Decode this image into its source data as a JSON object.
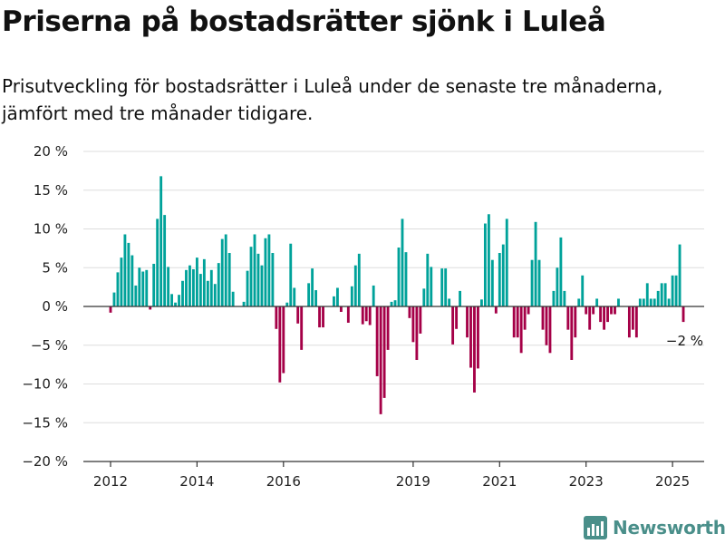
{
  "header": {
    "title": "Priserna på bostadsrätter sjönk i Luleå",
    "subtitle": "Prisutveckling för bostadsrätter i Luleå under de senaste tre månaderna, jämfört med tre månader tidigare."
  },
  "colors": {
    "positive": "#00a29a",
    "negative": "#a50047",
    "grid": "#dddddd",
    "axis": "#333333",
    "brand": "#4a8f8a"
  },
  "brand": {
    "name": "Newsworthy",
    "icon": "bar-chart-icon"
  },
  "chart_data": {
    "type": "bar",
    "title": "",
    "xlabel": "",
    "ylabel": "",
    "ylim": [
      -20,
      20
    ],
    "yticks": [
      20,
      15,
      10,
      5,
      0,
      -5,
      -10,
      -15,
      -20
    ],
    "ytick_labels": [
      "20 %",
      "15 %",
      "10 %",
      "5 %",
      "0 %",
      "−5 %",
      "−10 %",
      "−15 %",
      "−20 %"
    ],
    "xticks": [
      "2012",
      "2014",
      "2016",
      "2019",
      "2021",
      "2023",
      "2025"
    ],
    "x_start": "2012-01",
    "frequency": "monthly",
    "annotation": {
      "text": "−2 %",
      "value": -2,
      "at": "last"
    },
    "values": [
      -0.8,
      1.8,
      4.4,
      6.3,
      9.3,
      8.2,
      6.6,
      2.7,
      5.0,
      4.5,
      4.7,
      -0.4,
      5.5,
      11.3,
      16.8,
      11.8,
      5.1,
      1.6,
      0.5,
      1.5,
      3.3,
      4.7,
      5.3,
      4.8,
      6.3,
      4.2,
      6.1,
      3.3,
      4.7,
      2.9,
      5.6,
      8.7,
      9.3,
      6.9,
      1.9,
      0,
      0,
      0.6,
      4.6,
      7.7,
      9.3,
      6.8,
      5.3,
      8.8,
      9.3,
      6.9,
      -2.9,
      -9.8,
      -8.6,
      0.5,
      8.1,
      2.4,
      -2.2,
      -5.6,
      0,
      3.0,
      4.9,
      2.1,
      -2.7,
      -2.7,
      0,
      0,
      1.3,
      2.4,
      -0.7,
      0,
      -2.1,
      2.6,
      5.3,
      6.8,
      -2.3,
      -1.9,
      -2.4,
      2.7,
      -9.0,
      -13.9,
      -11.8,
      -5.6,
      0.6,
      0.8,
      7.6,
      11.3,
      7.0,
      -1.5,
      -4.6,
      -6.9,
      -3.5,
      2.3,
      6.8,
      5.1,
      0,
      0,
      4.9,
      4.9,
      1.0,
      -4.9,
      -2.9,
      2.0,
      0,
      -4.0,
      -7.9,
      -11.1,
      -8.0,
      0.9,
      10.7,
      11.9,
      6.0,
      -0.9,
      6.9,
      8.0,
      11.3,
      0,
      -4.0,
      -4.0,
      -6.0,
      -3.0,
      -1.0,
      6.0,
      10.9,
      6.0,
      -3.0,
      -5.0,
      -6.0,
      2.0,
      5.0,
      8.9,
      2.0,
      -3.0,
      -6.9,
      -4.0,
      1.0,
      4.0,
      -1.0,
      -3.0,
      -1.0,
      1.0,
      -2.0,
      -3.0,
      -2.0,
      -1.0,
      -1.0,
      1.0,
      0,
      0,
      -4.0,
      -3.0,
      -4.0,
      1.0,
      1.0,
      3.0,
      1.0,
      1.0,
      2.0,
      3.0,
      3.0,
      1.0,
      4.0,
      4.0,
      8.0,
      -2.0
    ]
  }
}
